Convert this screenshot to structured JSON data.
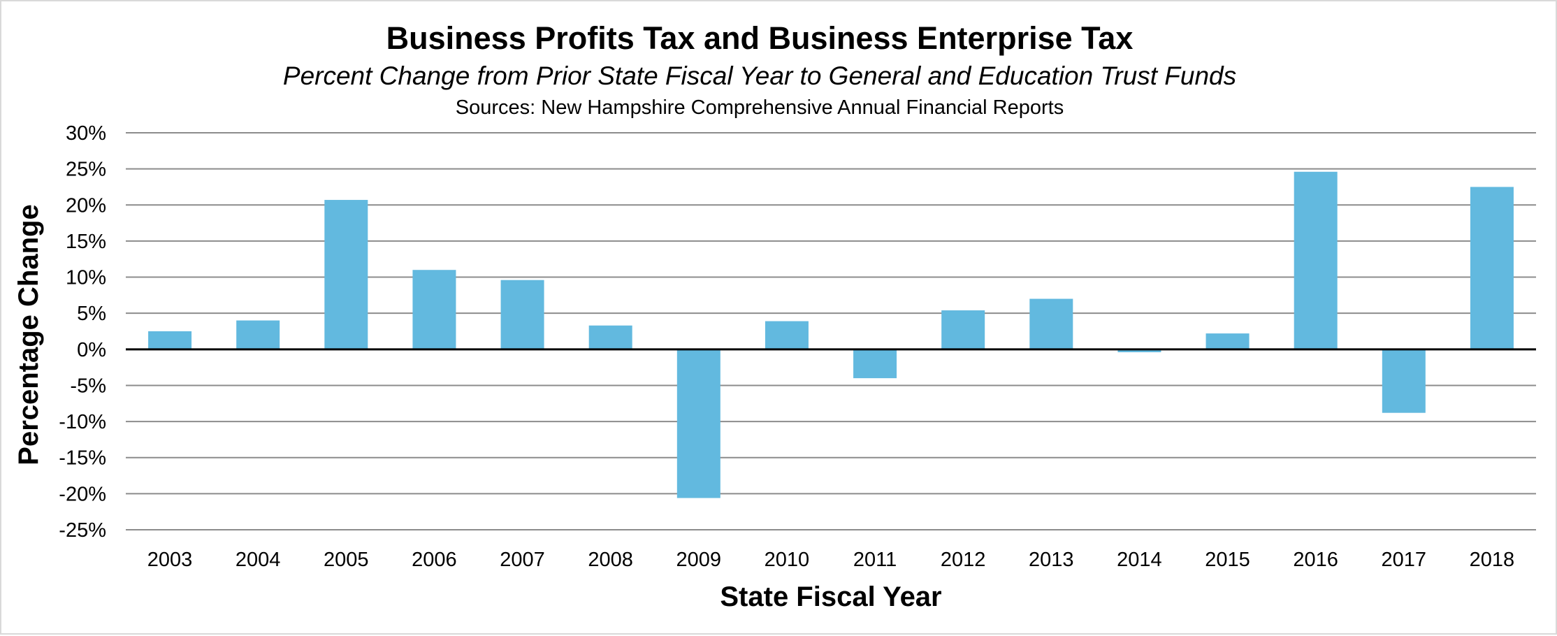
{
  "chart_data": {
    "type": "bar",
    "title": "Business Profits Tax and Business Enterprise Tax",
    "subtitle": "Percent Change from Prior State Fiscal Year to General and Education Trust Funds",
    "source": "Sources: New Hampshire Comprehensive Annual Financial Reports",
    "xlabel": "State Fiscal Year",
    "ylabel": "Percentage Change",
    "categories": [
      "2003",
      "2004",
      "2005",
      "2006",
      "2007",
      "2008",
      "2009",
      "2010",
      "2011",
      "2012",
      "2013",
      "2014",
      "2015",
      "2016",
      "2017",
      "2018"
    ],
    "values": [
      2.5,
      4.0,
      20.7,
      11.0,
      9.6,
      3.3,
      -20.6,
      3.9,
      -4.0,
      5.4,
      7.0,
      -0.4,
      2.2,
      24.6,
      -8.8,
      22.5
    ],
    "ylim": [
      -25,
      30
    ],
    "yticks": [
      30,
      25,
      20,
      15,
      10,
      5,
      0,
      -5,
      -10,
      -15,
      -20,
      -25
    ],
    "ytick_labels": [
      "30%",
      "25%",
      "20%",
      "15%",
      "10%",
      "5%",
      "0%",
      "-5%",
      "-10%",
      "-15%",
      "-20%",
      "-25%"
    ],
    "bar_color": "#62b9df",
    "grid": true,
    "legend": "none"
  }
}
